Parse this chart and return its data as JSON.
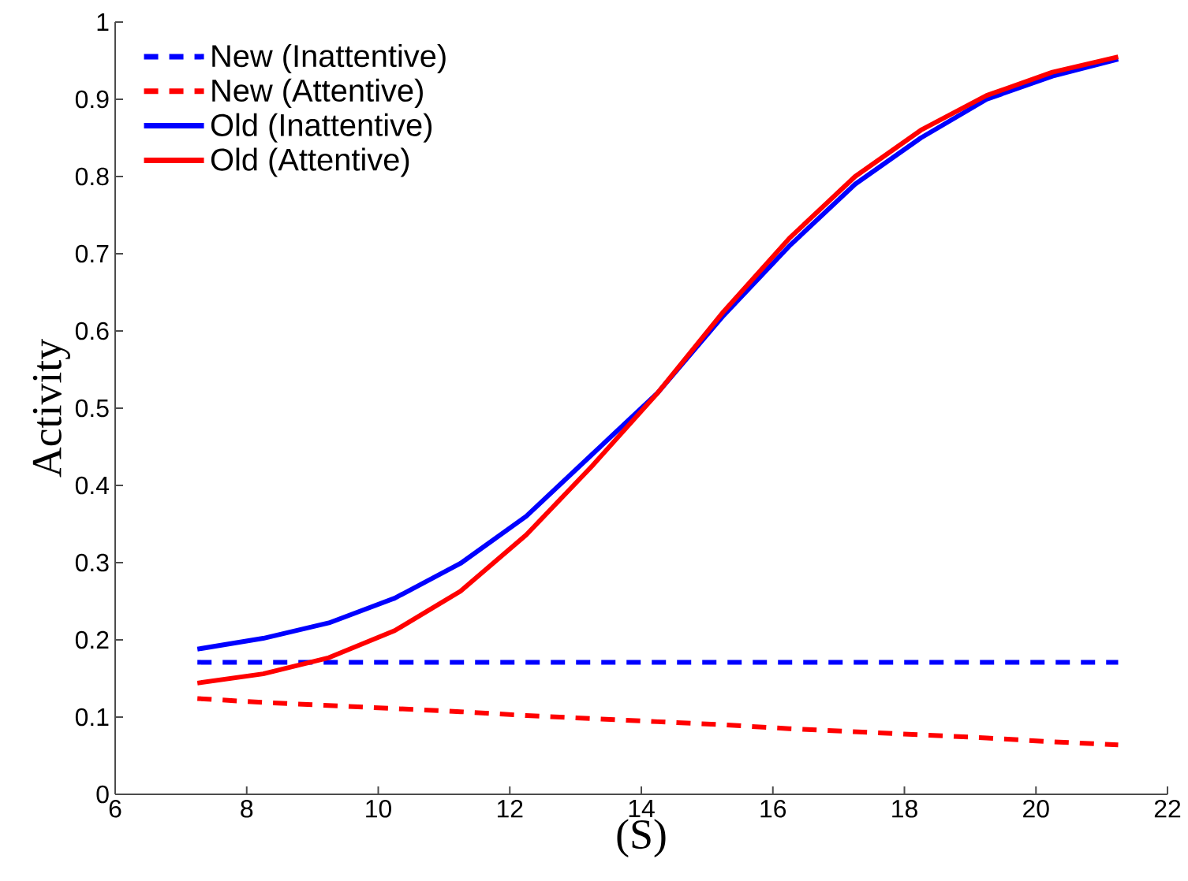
{
  "chart_data": {
    "type": "line",
    "xlabel": "(S)",
    "ylabel": "Activity",
    "x": [
      7.25,
      8.25,
      9.25,
      10.25,
      11.25,
      12.25,
      13.25,
      14.25,
      15.25,
      16.25,
      17.25,
      18.25,
      19.25,
      20.25,
      21.25
    ],
    "series": [
      {
        "name": "New (Inattentive)",
        "color": "#0000ff",
        "line_style": "dashed",
        "values": [
          0.171,
          0.171,
          0.171,
          0.171,
          0.171,
          0.171,
          0.171,
          0.171,
          0.171,
          0.171,
          0.171,
          0.171,
          0.171,
          0.171,
          0.171
        ]
      },
      {
        "name": "New (Attentive)",
        "color": "#ff0000",
        "line_style": "dashed",
        "values": [
          0.124,
          0.119,
          0.115,
          0.111,
          0.107,
          0.102,
          0.098,
          0.094,
          0.09,
          0.085,
          0.081,
          0.077,
          0.073,
          0.068,
          0.064
        ]
      },
      {
        "name": "Old (Inattentive)",
        "color": "#0000ff",
        "line_style": "solid",
        "values": [
          0.188,
          0.202,
          0.222,
          0.254,
          0.299,
          0.36,
          0.44,
          0.52,
          0.62,
          0.71,
          0.79,
          0.85,
          0.9,
          0.93,
          0.952
        ]
      },
      {
        "name": "Old (Attentive)",
        "color": "#ff0000",
        "line_style": "solid",
        "values": [
          0.144,
          0.156,
          0.177,
          0.212,
          0.263,
          0.336,
          0.425,
          0.52,
          0.625,
          0.72,
          0.8,
          0.86,
          0.905,
          0.935,
          0.955
        ]
      }
    ],
    "xlim": [
      6,
      22
    ],
    "ylim": [
      0,
      1
    ],
    "xticks": [
      6,
      8,
      10,
      12,
      14,
      16,
      18,
      20,
      22
    ],
    "yticks": [
      0,
      0.1,
      0.2,
      0.3,
      0.4,
      0.5,
      0.6,
      0.7,
      0.8,
      0.9,
      1
    ],
    "grid": false,
    "legend": "top left",
    "marker": "none"
  }
}
